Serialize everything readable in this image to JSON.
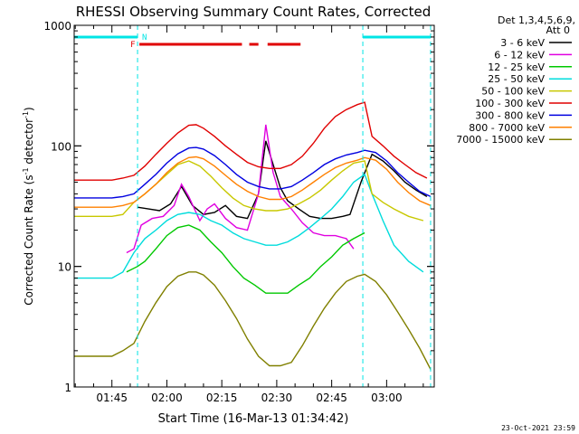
{
  "chart_data": {
    "type": "line",
    "title": "RHESSI Observing Summary Count Rates, Corrected",
    "xlabel": "Start Time (16-Mar-13 01:34:42)",
    "ylabel_main": "Corrected Count Rate (s",
    "ylabel_sup1": "-1",
    "ylabel_mid": " detector",
    "ylabel_sup2": "-1",
    "ylabel_end": ")",
    "y_scale": "log",
    "ylim": [
      1,
      1000
    ],
    "xlim": [
      "01:34:42",
      "03:13:00"
    ],
    "x_ticks": [
      "01:45",
      "02:00",
      "02:15",
      "02:30",
      "02:45",
      "03:00"
    ],
    "y_ticks": [
      "1",
      "10",
      "100",
      "1000"
    ],
    "legend_header": [
      "Det 1,3,4,5,6,9,",
      "Att 0"
    ],
    "legend_placement": "right",
    "footer_date": "23-Oct-2021 23:59",
    "flags": {
      "n_label": "N",
      "f_label": "F",
      "night_color": "#00e5e5",
      "flare_color": "#e00000",
      "night_intervals": [
        [
          "01:34:42",
          "01:52:00"
        ],
        [
          "02:53:30",
          "03:12:00"
        ]
      ],
      "flare_intervals": [
        [
          "01:52:30",
          "02:20:30"
        ],
        [
          "02:22:30",
          "02:25:00"
        ],
        [
          "02:27:30",
          "02:36:30"
        ]
      ]
    },
    "saa_lines": [
      "01:52:00",
      "02:53:30",
      "03:12:00"
    ],
    "series": [
      {
        "name": "3 - 6 keV",
        "color": "#000000",
        "points": [
          [
            "01:52",
            31
          ],
          [
            "01:55",
            30
          ],
          [
            "01:58",
            29
          ],
          [
            "02:01",
            33
          ],
          [
            "02:04",
            46
          ],
          [
            "02:07",
            32
          ],
          [
            "02:10",
            27
          ],
          [
            "02:13",
            28
          ],
          [
            "02:16",
            32
          ],
          [
            "02:19",
            26
          ],
          [
            "02:22",
            25
          ],
          [
            "02:25",
            40
          ],
          [
            "02:27",
            110
          ],
          [
            "02:29",
            70
          ],
          [
            "02:31",
            45
          ],
          [
            "02:33",
            35
          ],
          [
            "02:36",
            30
          ],
          [
            "02:39",
            26
          ],
          [
            "02:42",
            25
          ],
          [
            "02:45",
            25
          ],
          [
            "02:48",
            26
          ],
          [
            "02:50",
            27
          ],
          [
            "02:53",
            50
          ],
          [
            "02:56",
            85
          ],
          [
            "02:59",
            75
          ],
          [
            "03:02",
            62
          ],
          [
            "03:05",
            50
          ],
          [
            "03:08",
            43
          ],
          [
            "03:11",
            38
          ]
        ]
      },
      {
        "name": "6 - 12 keV",
        "color": "#e000e0",
        "points": [
          [
            "01:49",
            13
          ],
          [
            "01:51",
            14
          ],
          [
            "01:53",
            22
          ],
          [
            "01:56",
            25
          ],
          [
            "01:59",
            26
          ],
          [
            "02:02",
            32
          ],
          [
            "02:04",
            48
          ],
          [
            "02:06",
            38
          ],
          [
            "02:09",
            24
          ],
          [
            "02:11",
            30
          ],
          [
            "02:13",
            33
          ],
          [
            "02:16",
            25
          ],
          [
            "02:19",
            21
          ],
          [
            "02:22",
            20
          ],
          [
            "02:25",
            40
          ],
          [
            "02:27",
            150
          ],
          [
            "02:29",
            60
          ],
          [
            "02:31",
            38
          ],
          [
            "02:34",
            30
          ],
          [
            "02:37",
            23
          ],
          [
            "02:40",
            19
          ],
          [
            "02:43",
            18
          ],
          [
            "02:46",
            18
          ],
          [
            "02:49",
            17
          ],
          [
            "02:51",
            14
          ]
        ]
      },
      {
        "name": "12 - 25 keV",
        "color": "#00c800",
        "points": [
          [
            "01:49",
            9
          ],
          [
            "01:52",
            10
          ],
          [
            "01:54",
            11
          ],
          [
            "01:57",
            14
          ],
          [
            "02:00",
            18
          ],
          [
            "02:03",
            21
          ],
          [
            "02:06",
            22
          ],
          [
            "02:09",
            20
          ],
          [
            "02:12",
            16
          ],
          [
            "02:15",
            13
          ],
          [
            "02:18",
            10
          ],
          [
            "02:21",
            8
          ],
          [
            "02:24",
            7
          ],
          [
            "02:27",
            6
          ],
          [
            "02:30",
            6
          ],
          [
            "02:33",
            6
          ],
          [
            "02:36",
            7
          ],
          [
            "02:39",
            8
          ],
          [
            "02:42",
            10
          ],
          [
            "02:45",
            12
          ],
          [
            "02:48",
            15
          ],
          [
            "02:51",
            17
          ],
          [
            "02:54",
            19
          ]
        ]
      },
      {
        "name": "25 - 50 keV",
        "color": "#00dcdc",
        "points": [
          [
            "01:34:42",
            8
          ],
          [
            "01:40",
            8
          ],
          [
            "01:45",
            8
          ],
          [
            "01:48",
            9
          ],
          [
            "01:51",
            13
          ],
          [
            "01:54",
            17
          ],
          [
            "01:57",
            20
          ],
          [
            "02:00",
            24
          ],
          [
            "02:03",
            27
          ],
          [
            "02:06",
            28
          ],
          [
            "02:09",
            27
          ],
          [
            "02:12",
            24
          ],
          [
            "02:15",
            22
          ],
          [
            "02:18",
            19
          ],
          [
            "02:21",
            17
          ],
          [
            "02:24",
            16
          ],
          [
            "02:27",
            15
          ],
          [
            "02:30",
            15
          ],
          [
            "02:33",
            16
          ],
          [
            "02:36",
            18
          ],
          [
            "02:39",
            21
          ],
          [
            "02:42",
            25
          ],
          [
            "02:45",
            30
          ],
          [
            "02:48",
            38
          ],
          [
            "02:51",
            50
          ],
          [
            "02:54",
            58
          ],
          [
            "02:56",
            40
          ],
          [
            "02:59",
            24
          ],
          [
            "03:02",
            15
          ],
          [
            "03:06",
            11
          ],
          [
            "03:10",
            9
          ]
        ]
      },
      {
        "name": "50 - 100 keV",
        "color": "#c8c800",
        "points": [
          [
            "01:34:42",
            26
          ],
          [
            "01:40",
            26
          ],
          [
            "01:45",
            26
          ],
          [
            "01:48",
            27
          ],
          [
            "01:51",
            34
          ],
          [
            "01:54",
            40
          ],
          [
            "01:57",
            48
          ],
          [
            "02:00",
            58
          ],
          [
            "02:03",
            70
          ],
          [
            "02:06",
            75
          ],
          [
            "02:09",
            68
          ],
          [
            "02:12",
            56
          ],
          [
            "02:15",
            45
          ],
          [
            "02:18",
            37
          ],
          [
            "02:21",
            32
          ],
          [
            "02:24",
            30
          ],
          [
            "02:27",
            29
          ],
          [
            "02:30",
            29
          ],
          [
            "02:33",
            30
          ],
          [
            "02:36",
            33
          ],
          [
            "02:39",
            37
          ],
          [
            "02:42",
            43
          ],
          [
            "02:45",
            52
          ],
          [
            "02:48",
            62
          ],
          [
            "02:51",
            72
          ],
          [
            "02:54",
            75
          ],
          [
            "02:56",
            40
          ],
          [
            "02:59",
            34
          ],
          [
            "03:02",
            30
          ],
          [
            "03:06",
            26
          ],
          [
            "03:10",
            24
          ]
        ]
      },
      {
        "name": "100 - 300 keV",
        "color": "#e00000",
        "points": [
          [
            "01:34:42",
            52
          ],
          [
            "01:40",
            52
          ],
          [
            "01:45",
            52
          ],
          [
            "01:48",
            54
          ],
          [
            "01:51",
            57
          ],
          [
            "01:54",
            68
          ],
          [
            "01:57",
            85
          ],
          [
            "02:00",
            105
          ],
          [
            "02:03",
            128
          ],
          [
            "02:06",
            148
          ],
          [
            "02:08",
            150
          ],
          [
            "02:10",
            140
          ],
          [
            "02:13",
            120
          ],
          [
            "02:16",
            100
          ],
          [
            "02:19",
            85
          ],
          [
            "02:22",
            73
          ],
          [
            "02:25",
            67
          ],
          [
            "02:28",
            65
          ],
          [
            "02:31",
            65
          ],
          [
            "02:34",
            70
          ],
          [
            "02:37",
            82
          ],
          [
            "02:40",
            105
          ],
          [
            "02:43",
            140
          ],
          [
            "02:46",
            175
          ],
          [
            "02:49",
            200
          ],
          [
            "02:52",
            220
          ],
          [
            "02:54",
            230
          ],
          [
            "02:56",
            120
          ],
          [
            "02:59",
            100
          ],
          [
            "03:02",
            82
          ],
          [
            "03:05",
            70
          ],
          [
            "03:08",
            60
          ],
          [
            "03:11",
            54
          ]
        ]
      },
      {
        "name": "300 - 800 keV",
        "color": "#0000e0",
        "points": [
          [
            "01:34:42",
            37
          ],
          [
            "01:40",
            37
          ],
          [
            "01:45",
            37
          ],
          [
            "01:48",
            38
          ],
          [
            "01:51",
            40
          ],
          [
            "01:54",
            48
          ],
          [
            "01:57",
            58
          ],
          [
            "02:00",
            72
          ],
          [
            "02:03",
            86
          ],
          [
            "02:06",
            96
          ],
          [
            "02:08",
            97
          ],
          [
            "02:10",
            94
          ],
          [
            "02:13",
            83
          ],
          [
            "02:16",
            70
          ],
          [
            "02:19",
            58
          ],
          [
            "02:22",
            50
          ],
          [
            "02:25",
            46
          ],
          [
            "02:28",
            44
          ],
          [
            "02:31",
            44
          ],
          [
            "02:34",
            46
          ],
          [
            "02:37",
            52
          ],
          [
            "02:40",
            60
          ],
          [
            "02:43",
            70
          ],
          [
            "02:46",
            78
          ],
          [
            "02:49",
            84
          ],
          [
            "02:52",
            88
          ],
          [
            "02:54",
            92
          ],
          [
            "02:57",
            88
          ],
          [
            "03:00",
            75
          ],
          [
            "03:03",
            60
          ],
          [
            "03:06",
            50
          ],
          [
            "03:09",
            42
          ],
          [
            "03:12",
            38
          ]
        ]
      },
      {
        "name": "800 - 7000 keV",
        "color": "#ff8000",
        "points": [
          [
            "01:34:42",
            31
          ],
          [
            "01:40",
            31
          ],
          [
            "01:45",
            31
          ],
          [
            "01:48",
            32
          ],
          [
            "01:51",
            34
          ],
          [
            "01:54",
            40
          ],
          [
            "01:57",
            48
          ],
          [
            "02:00",
            60
          ],
          [
            "02:03",
            72
          ],
          [
            "02:06",
            80
          ],
          [
            "02:08",
            81
          ],
          [
            "02:10",
            78
          ],
          [
            "02:13",
            68
          ],
          [
            "02:16",
            57
          ],
          [
            "02:19",
            48
          ],
          [
            "02:22",
            42
          ],
          [
            "02:25",
            38
          ],
          [
            "02:28",
            36
          ],
          [
            "02:31",
            36
          ],
          [
            "02:34",
            38
          ],
          [
            "02:37",
            43
          ],
          [
            "02:40",
            50
          ],
          [
            "02:43",
            58
          ],
          [
            "02:46",
            66
          ],
          [
            "02:49",
            72
          ],
          [
            "02:52",
            76
          ],
          [
            "02:54",
            80
          ],
          [
            "02:57",
            76
          ],
          [
            "03:00",
            64
          ],
          [
            "03:03",
            50
          ],
          [
            "03:06",
            41
          ],
          [
            "03:09",
            35
          ],
          [
            "03:12",
            32
          ]
        ]
      },
      {
        "name": "7000 - 15000 keV",
        "color": "#808000",
        "points": [
          [
            "01:34:42",
            1.8
          ],
          [
            "01:40",
            1.8
          ],
          [
            "01:45",
            1.8
          ],
          [
            "01:48",
            2.0
          ],
          [
            "01:51",
            2.3
          ],
          [
            "01:54",
            3.5
          ],
          [
            "01:57",
            5.0
          ],
          [
            "02:00",
            6.8
          ],
          [
            "02:03",
            8.3
          ],
          [
            "02:06",
            9.0
          ],
          [
            "02:08",
            9.0
          ],
          [
            "02:10",
            8.5
          ],
          [
            "02:13",
            7.0
          ],
          [
            "02:16",
            5.2
          ],
          [
            "02:19",
            3.7
          ],
          [
            "02:22",
            2.5
          ],
          [
            "02:25",
            1.8
          ],
          [
            "02:28",
            1.5
          ],
          [
            "02:31",
            1.5
          ],
          [
            "02:34",
            1.6
          ],
          [
            "02:37",
            2.2
          ],
          [
            "02:40",
            3.2
          ],
          [
            "02:43",
            4.5
          ],
          [
            "02:46",
            6.0
          ],
          [
            "02:49",
            7.5
          ],
          [
            "02:52",
            8.3
          ],
          [
            "02:54",
            8.6
          ],
          [
            "02:57",
            7.5
          ],
          [
            "03:00",
            5.8
          ],
          [
            "03:03",
            4.2
          ],
          [
            "03:06",
            3.0
          ],
          [
            "03:09",
            2.1
          ],
          [
            "03:12",
            1.4
          ]
        ]
      }
    ]
  }
}
